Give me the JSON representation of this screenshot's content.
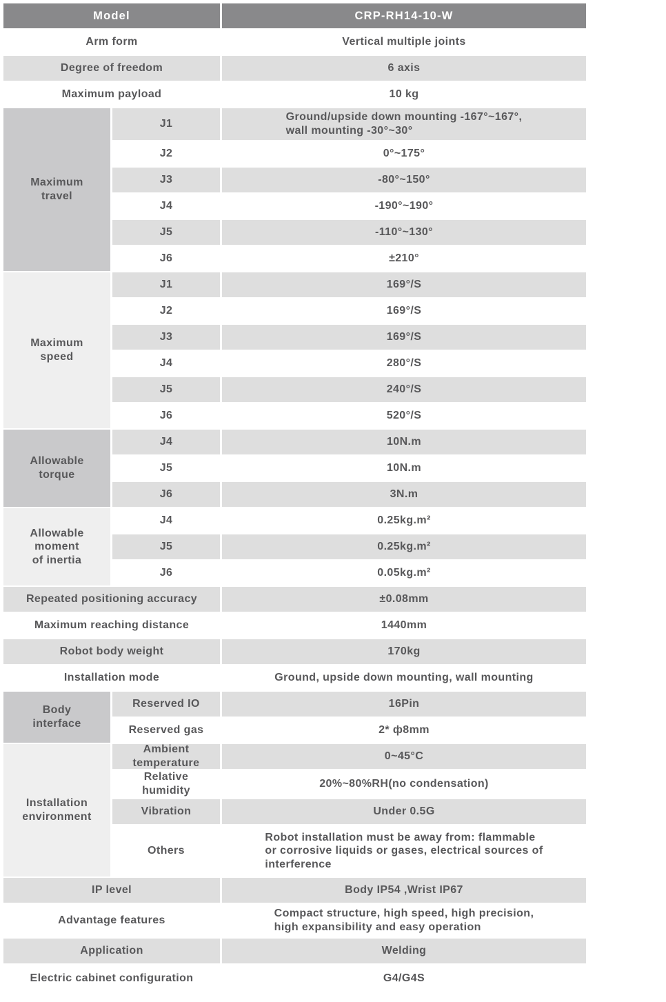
{
  "palette": {
    "header_bg": "#89898b",
    "header_text": "#ffffff",
    "row_gray": "#dedede",
    "category_dark": "#c9c9cb",
    "category_light": "#efefef",
    "text": "#58585a"
  },
  "table": {
    "rows": [
      {
        "label": "Model",
        "value": "CRP-RH14-10-W",
        "bg": "header",
        "wide": true
      },
      {
        "label": "Arm form",
        "value": "Vertical multiple joints",
        "bg": "white",
        "wide": true
      },
      {
        "label": "Degree of freedom",
        "value": "6 axis",
        "bg": "gray",
        "wide": true
      },
      {
        "label": "Maximum payload",
        "value": "10 kg",
        "bg": "white",
        "wide": true
      },
      {
        "category": {
          "label": "Maximum\ntravel",
          "span": 6,
          "shade": "dark"
        },
        "label": "J1",
        "value": "Ground/upside down mounting -167°~167°,\nwall mounting -30°~30°",
        "bg": "gray",
        "value_align": "left-block"
      },
      {
        "label": "J2",
        "value": "0°~175°",
        "bg": "white"
      },
      {
        "label": "J3",
        "value": "-80°~150°",
        "bg": "gray"
      },
      {
        "label": "J4",
        "value": "-190°~190°",
        "bg": "white"
      },
      {
        "label": "J5",
        "value": "-110°~130°",
        "bg": "gray"
      },
      {
        "label": "J6",
        "value": "±210°",
        "bg": "white"
      },
      {
        "category": {
          "label": "Maximum\nspeed",
          "span": 6,
          "shade": "light"
        },
        "label": "J1",
        "value": "169°/S",
        "bg": "gray"
      },
      {
        "label": "J2",
        "value": "169°/S",
        "bg": "white"
      },
      {
        "label": "J3",
        "value": "169°/S",
        "bg": "gray"
      },
      {
        "label": "J4",
        "value": "280°/S",
        "bg": "white"
      },
      {
        "label": "J5",
        "value": "240°/S",
        "bg": "gray"
      },
      {
        "label": "J6",
        "value": "520°/S",
        "bg": "white"
      },
      {
        "category": {
          "label": "Allowable\ntorque",
          "span": 3,
          "shade": "dark"
        },
        "label": "J4",
        "value": "10N.m",
        "bg": "gray"
      },
      {
        "label": "J5",
        "value": "10N.m",
        "bg": "white"
      },
      {
        "label": "J6",
        "value": "3N.m",
        "bg": "gray"
      },
      {
        "category": {
          "label": "Allowable\nmoment\nof inertia",
          "span": 3,
          "shade": "light"
        },
        "label": "J4",
        "value": "0.25kg.m²",
        "bg": "white"
      },
      {
        "label": "J5",
        "value": "0.25kg.m²",
        "bg": "gray"
      },
      {
        "label": "J6",
        "value": "0.05kg.m²",
        "bg": "white"
      },
      {
        "label": "Repeated positioning accuracy",
        "value": "±0.08mm",
        "bg": "gray",
        "wide": true
      },
      {
        "label": "Maximum reaching distance",
        "value": "1440mm",
        "bg": "white",
        "wide": true
      },
      {
        "label": "Robot body weight",
        "value": "170kg",
        "bg": "gray",
        "wide": true
      },
      {
        "label": "Installation mode",
        "value": "Ground, upside down mounting, wall mounting",
        "bg": "white",
        "wide": true
      },
      {
        "category": {
          "label": "Body\ninterface",
          "span": 2,
          "shade": "dark"
        },
        "label": "Reserved IO",
        "value": "16Pin",
        "bg": "gray"
      },
      {
        "label": "Reserved gas",
        "value": "2* ф8mm",
        "bg": "white"
      },
      {
        "category": {
          "label": "Installation\nenvironment",
          "span": 4,
          "shade": "light"
        },
        "label": "Ambient\ntemperature",
        "value": "0~45°C",
        "bg": "gray"
      },
      {
        "label": "Relative\nhumidity",
        "value": "20%~80%RH(no condensation)",
        "bg": "white"
      },
      {
        "label": "Vibration",
        "value": "Under 0.5G",
        "bg": "gray"
      },
      {
        "label": "Others",
        "value": "Robot installation must be away from: flammable\nor corrosive liquids or gases, electrical sources of\ninterference",
        "bg": "white",
        "value_align": "left-block"
      },
      {
        "label": "IP level",
        "value": "Body IP54 ,Wrist IP67",
        "bg": "gray",
        "wide": true
      },
      {
        "label": "Advantage features",
        "value": "Compact structure, high speed, high precision,\nhigh expansibility and easy operation",
        "bg": "white",
        "wide": true,
        "value_align": "left-block"
      },
      {
        "label": "Application",
        "value": "Welding",
        "bg": "gray",
        "wide": true
      },
      {
        "label": "Electric cabinet configuration",
        "value": "G4/G4S",
        "bg": "white",
        "wide": true
      }
    ]
  }
}
